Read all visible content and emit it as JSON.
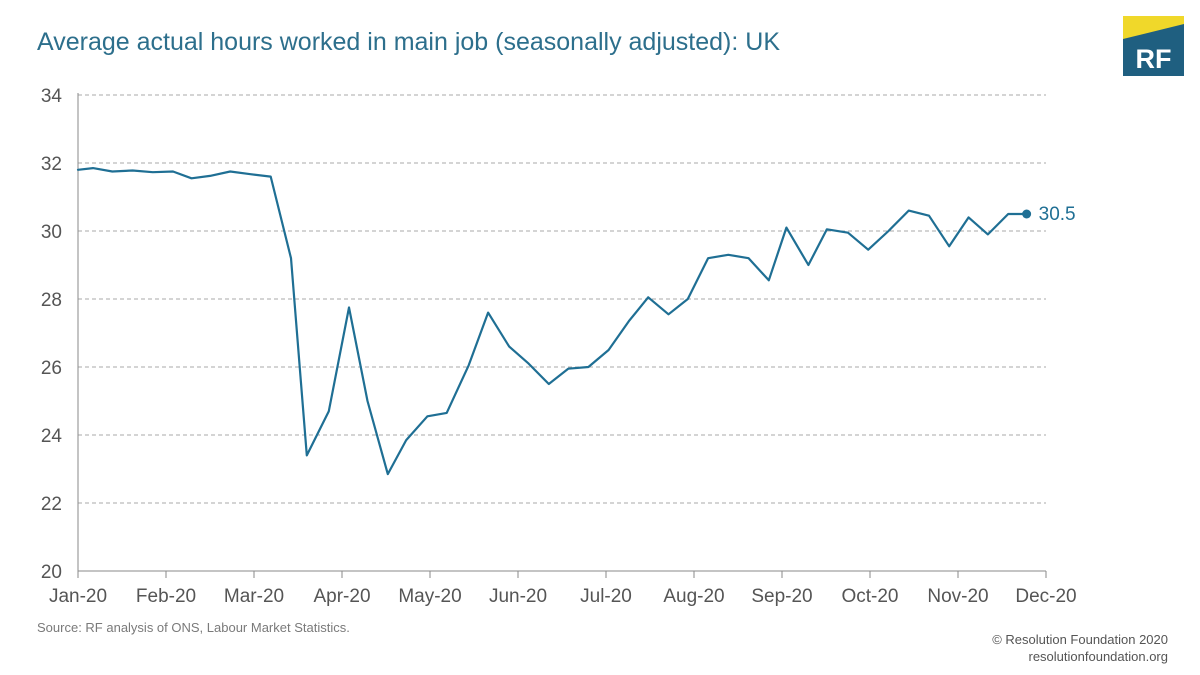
{
  "title": "Average actual hours worked in main job (seasonally adjusted): UK",
  "logo": {
    "text": "RF",
    "colors": {
      "yellow": "#f0d82a",
      "navy": "#1f5f80"
    }
  },
  "source": "Source: RF analysis of ONS, Labour Market Statistics.",
  "copyright": {
    "line1": "© Resolution Foundation 2020",
    "line2": "resolutionfoundation.org"
  },
  "chart_data": {
    "type": "line",
    "title": "Average actual hours worked in main job (seasonally adjusted): UK",
    "xlabel": "",
    "ylabel": "",
    "ylim": [
      20,
      34
    ],
    "yticks": [
      20,
      22,
      24,
      26,
      28,
      30,
      32,
      34
    ],
    "xlim": [
      0,
      11
    ],
    "xtick_labels": [
      "Jan-20",
      "Feb-20",
      "Mar-20",
      "Apr-20",
      "May-20",
      "Jun-20",
      "Jul-20",
      "Aug-20",
      "Sep-20",
      "Oct-20",
      "Nov-20",
      "Dec-20"
    ],
    "grid": "horizontal-dashed",
    "line_color": "#1f6f94",
    "end_label": "30.5",
    "series": [
      {
        "x": [
          0.0,
          0.17,
          0.39,
          0.62,
          0.85,
          1.08,
          1.29,
          1.5,
          1.73,
          1.96,
          2.19,
          2.42,
          2.6,
          2.85,
          3.08,
          3.29,
          3.52,
          3.73,
          3.97,
          4.19,
          4.44,
          4.66,
          4.9,
          5.12,
          5.35,
          5.57,
          5.8,
          6.03,
          6.26,
          6.48,
          6.71,
          6.93,
          7.16,
          7.39,
          7.62,
          7.85,
          8.05,
          8.3,
          8.51,
          8.75,
          8.98,
          9.21,
          9.44,
          9.67,
          9.9,
          10.12,
          10.34,
          10.57,
          10.78
        ],
        "y": [
          31.8,
          31.85,
          31.75,
          31.78,
          31.73,
          31.75,
          31.55,
          31.62,
          31.75,
          31.67,
          31.6,
          29.2,
          23.4,
          24.7,
          27.75,
          25.0,
          22.85,
          23.85,
          24.55,
          24.65,
          26.05,
          27.6,
          26.6,
          26.1,
          25.5,
          25.95,
          26.0,
          26.5,
          27.35,
          28.05,
          27.55,
          28.0,
          29.2,
          29.3,
          29.2,
          28.55,
          30.1,
          29.0,
          30.05,
          29.95,
          29.45,
          30.0,
          30.6,
          30.45,
          29.55,
          30.4,
          29.9,
          30.5,
          30.5
        ]
      }
    ]
  }
}
